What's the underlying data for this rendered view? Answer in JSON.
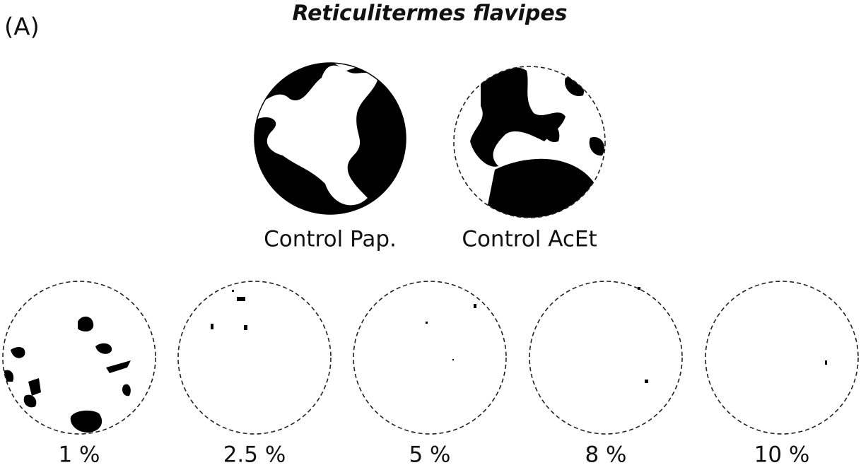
{
  "panel_label": "(A)",
  "title": "Reticulitermes flavipes",
  "controls": [
    {
      "label": "Control Pap."
    },
    {
      "label": "Control AcEt"
    }
  ],
  "treatments": [
    {
      "label": "1 %"
    },
    {
      "label": "2.5 %"
    },
    {
      "label": "5 %"
    },
    {
      "label": "8 %"
    },
    {
      "label": "10 %"
    }
  ]
}
